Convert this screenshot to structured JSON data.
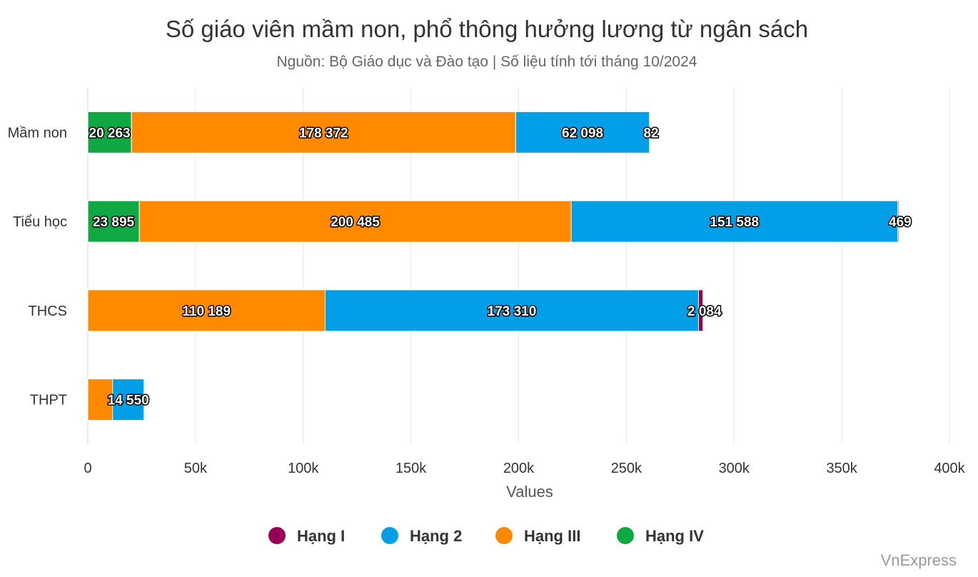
{
  "chart_data": {
    "type": "bar",
    "orientation": "horizontal",
    "stacked": true,
    "title": "Số giáo viên mầm non, phổ thông hưởng lương từ ngân sách",
    "subtitle": "Nguồn: Bộ Giáo dục và Đào tạo | Số liệu tính tới tháng 10/2024",
    "categories": [
      "Mầm non",
      "Tiểu học",
      "THCS",
      "THPT"
    ],
    "series": [
      {
        "name": "Hạng IV",
        "color": "#10a843",
        "values": [
          20263,
          23895,
          0,
          0
        ],
        "labels": [
          "20 263",
          "23 895",
          "",
          ""
        ]
      },
      {
        "name": "Hạng III",
        "color": "#ff8a00",
        "values": [
          178372,
          200485,
          110189,
          11500
        ],
        "labels": [
          "178 372",
          "200 485",
          "110 189",
          ""
        ]
      },
      {
        "name": "Hạng 2",
        "color": "#039ee8",
        "values": [
          62098,
          151588,
          173310,
          14550
        ],
        "labels": [
          "62 098",
          "151 588",
          "173 310",
          "14 550"
        ]
      },
      {
        "name": "Hạng I",
        "color": "#960055",
        "values": [
          82,
          469,
          2084,
          0
        ],
        "labels": [
          "82",
          "469",
          "2 084",
          ""
        ]
      }
    ],
    "legend_order": [
      "Hạng I",
      "Hạng 2",
      "Hạng III",
      "Hạng IV"
    ],
    "x_ticks": [
      {
        "value": 0,
        "label": "0"
      },
      {
        "value": 50000,
        "label": "50k"
      },
      {
        "value": 100000,
        "label": "100k"
      },
      {
        "value": 150000,
        "label": "150k"
      },
      {
        "value": 200000,
        "label": "200k"
      },
      {
        "value": 250000,
        "label": "250k"
      },
      {
        "value": 300000,
        "label": "300k"
      },
      {
        "value": 350000,
        "label": "350k"
      },
      {
        "value": 400000,
        "label": "400k"
      }
    ],
    "xlabel": "Values",
    "ylabel": "",
    "xlim": [
      0,
      400000
    ],
    "grid": true,
    "legend_position": "bottom"
  },
  "credit": "VnExpress"
}
